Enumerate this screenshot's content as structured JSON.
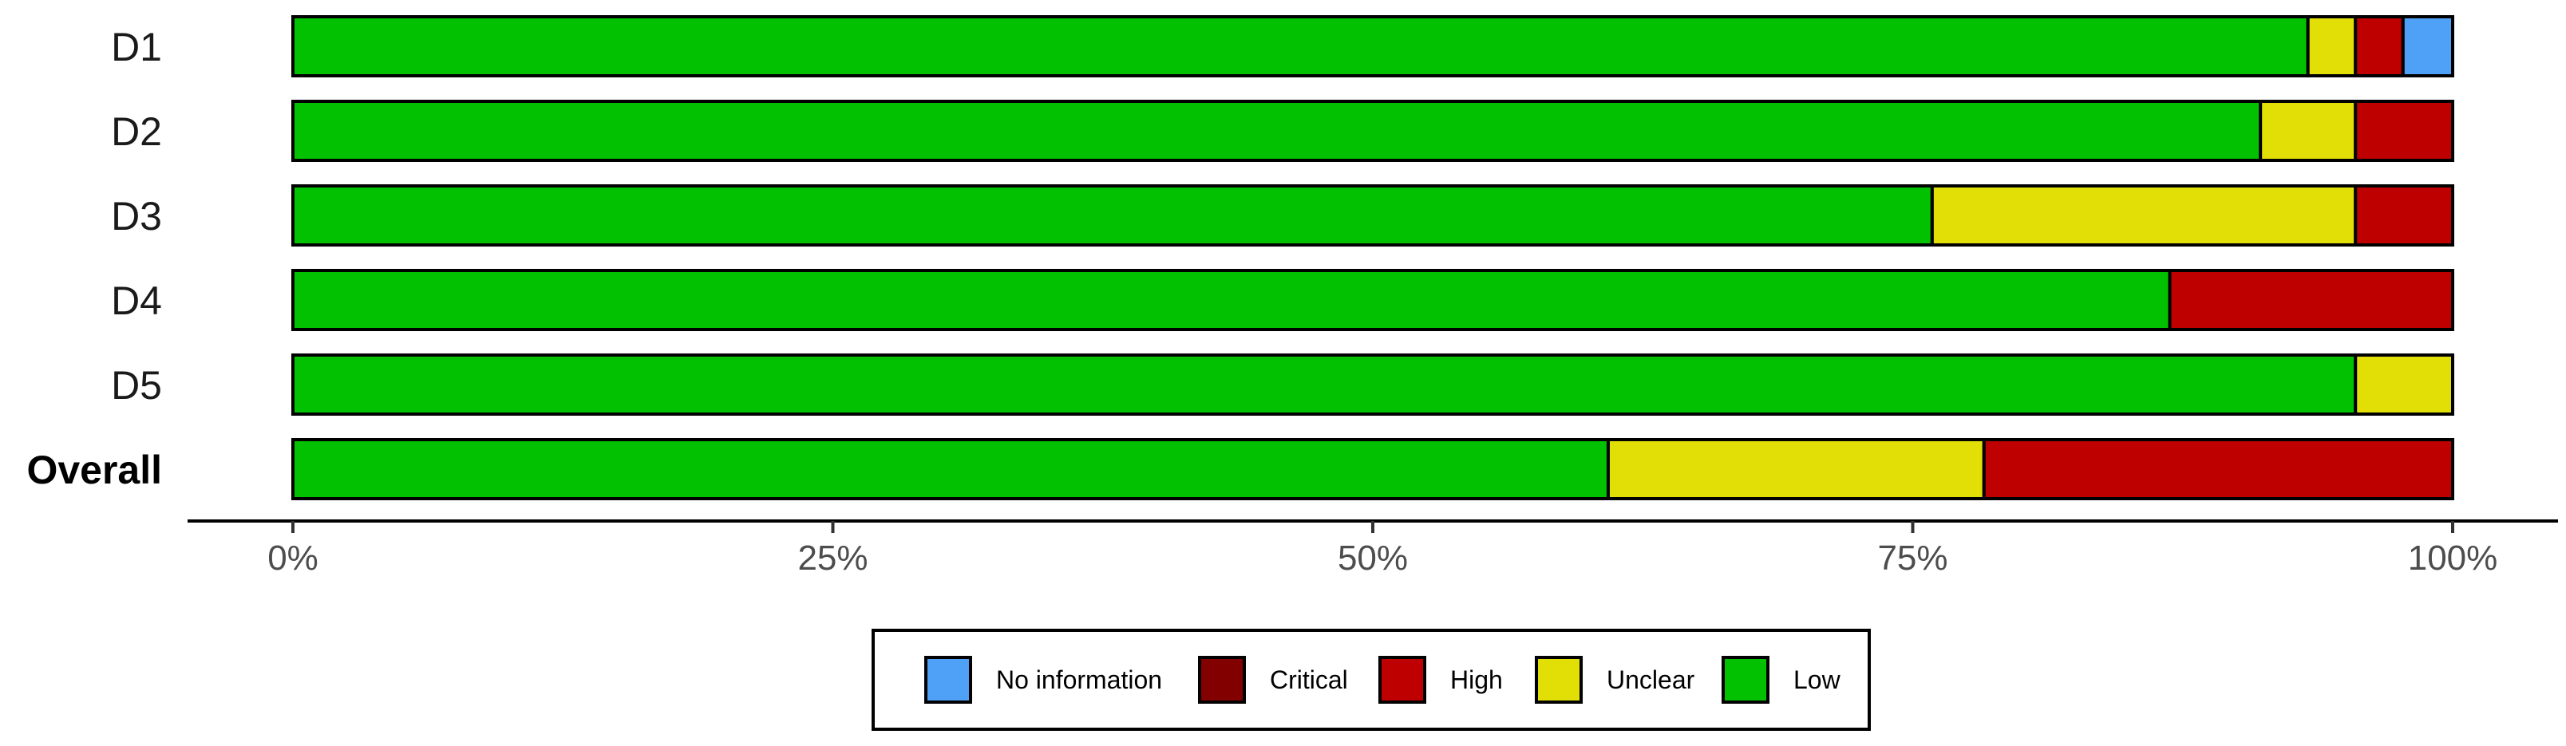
{
  "chart_data": {
    "type": "bar",
    "orientation": "horizontal",
    "stacked": true,
    "categories": [
      "D1",
      "D2",
      "D3",
      "D4",
      "D5",
      "Overall"
    ],
    "series": [
      {
        "name": "Low",
        "color": "#02C100",
        "values": [
          93.3,
          91.1,
          75.9,
          86.9,
          95.5,
          60.9
        ]
      },
      {
        "name": "Unclear",
        "color": "#E2DF07",
        "values": [
          2.2,
          4.4,
          19.6,
          0,
          4.5,
          17.4
        ]
      },
      {
        "name": "High",
        "color": "#BF0000",
        "values": [
          2.2,
          4.5,
          4.5,
          13.1,
          0,
          21.7
        ]
      },
      {
        "name": "Critical",
        "color": "#820000",
        "values": [
          0,
          0,
          0,
          0,
          0,
          0
        ]
      },
      {
        "name": "No information",
        "color": "#4EA1F7",
        "values": [
          2.3,
          0,
          0,
          0,
          0,
          0
        ]
      }
    ],
    "xlim": [
      0,
      100
    ],
    "x_ticks": [
      0,
      25,
      50,
      75,
      100
    ],
    "x_tick_labels": [
      "0%",
      "25%",
      "50%",
      "75%",
      "100%"
    ],
    "grid": false,
    "legend": {
      "placement": "bottom",
      "order": [
        "No information",
        "Critical",
        "High",
        "Unclear",
        "Low"
      ]
    },
    "title": "",
    "xlabel": "",
    "ylabel": ""
  }
}
